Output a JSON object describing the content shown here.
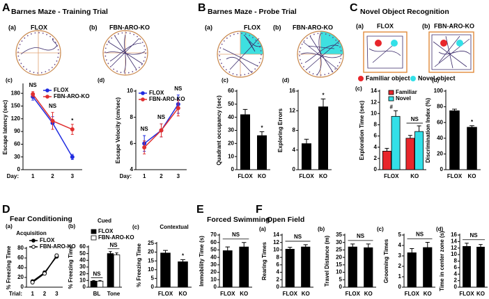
{
  "panels": [
    {
      "letter": "A",
      "title": "Barnes Maze - Training Trial"
    },
    {
      "letter": "B",
      "title": "Barnes Maze - Probe Trial"
    },
    {
      "letter": "C",
      "title": "Novel Object Recognition"
    },
    {
      "letter": "D",
      "title": "Fear Conditioning"
    },
    {
      "letter": "E",
      "title": "Forced Swimming"
    },
    {
      "letter": "F",
      "title": "Open Field"
    }
  ],
  "images": [
    {
      "label": "(a)",
      "caption": "FLOX"
    },
    {
      "label": "(b)",
      "caption": "FBN-ARO-KO"
    },
    {
      "label": "(a)",
      "caption": "FLOX"
    },
    {
      "label": "(b)",
      "caption": "FBN-ARO-KO"
    },
    {
      "label": "(a)",
      "caption": "FLOX"
    },
    {
      "label": "(b)",
      "caption": "FBN-ARO-KO"
    }
  ],
  "object_legend": [
    "Familiar object",
    "Novel object"
  ],
  "chart_data": [
    {
      "type": "line",
      "label": "(c)",
      "ylabel": "Escape latency (sec)",
      "xlabel": "Day:",
      "categories": [
        "1",
        "2",
        "3"
      ],
      "series": [
        {
          "name": "FLOX",
          "color": "#1f2be0",
          "values": [
            172,
            110,
            30
          ],
          "errors": [
            8,
            15,
            6
          ]
        },
        {
          "name": "FBN-ARO-KO",
          "color": "#e03030",
          "values": [
            178,
            115,
            95
          ],
          "errors": [
            6,
            20,
            12
          ]
        }
      ],
      "ylim": [
        0,
        200
      ],
      "yticks": [
        0,
        30,
        60,
        90,
        120,
        150,
        180
      ],
      "annotations": [
        "NS",
        "NS",
        "*"
      ]
    },
    {
      "type": "line",
      "label": "(d)",
      "ylabel": "Escape Velocity (cm/sec)",
      "xlabel": "Day:",
      "categories": [
        "1",
        "2",
        "3"
      ],
      "series": [
        {
          "name": "FLOX",
          "color": "#1f2be0",
          "values": [
            6.0,
            7.0,
            9.0
          ],
          "errors": [
            0.6,
            0.5,
            0.7
          ]
        },
        {
          "name": "FBN-ARO-KO",
          "color": "#e03030",
          "values": [
            5.7,
            7.0,
            8.7
          ],
          "errors": [
            0.5,
            0.5,
            0.6
          ]
        }
      ],
      "ylim": [
        4,
        10
      ],
      "yticks": [
        4,
        6,
        8,
        10
      ],
      "annotations": [
        "NS",
        "NS",
        "NS"
      ]
    },
    {
      "type": "bar",
      "label": "(c)",
      "ylabel": "Quadrant occupancy (sec)",
      "categories": [
        "FLOX",
        "KO"
      ],
      "values": [
        42,
        26
      ],
      "errors": [
        4,
        3
      ],
      "color": "#000000",
      "ylim": [
        0,
        60
      ],
      "yticks": [
        0,
        10,
        20,
        30,
        40,
        50,
        60
      ],
      "annotations": [
        null,
        "*"
      ]
    },
    {
      "type": "bar",
      "label": "(d)",
      "ylabel": "Exploring Errors",
      "categories": [
        "FLOX",
        "KO"
      ],
      "values": [
        5.3,
        12.8
      ],
      "errors": [
        0.9,
        1.6
      ],
      "color": "#000000",
      "ylim": [
        0,
        16
      ],
      "yticks": [
        0,
        4,
        8,
        12,
        16
      ],
      "annotations": [
        null,
        "*"
      ]
    },
    {
      "type": "bar",
      "label": "(c)",
      "ylabel": "Exploration Time (sec)",
      "categories": [
        "FLOX",
        "KO"
      ],
      "series": [
        {
          "name": "Familiar",
          "color": "#e8262b",
          "values": [
            3.3,
            5.6
          ],
          "errors": [
            0.5,
            0.5
          ]
        },
        {
          "name": "Novel",
          "color": "#33e0e8",
          "values": [
            9.5,
            6.8
          ],
          "errors": [
            1.0,
            1.0
          ]
        }
      ],
      "ylim": [
        0,
        14
      ],
      "yticks": [
        0,
        2,
        4,
        6,
        8,
        10,
        12,
        14
      ],
      "annotations": [
        "#",
        "NS"
      ]
    },
    {
      "type": "bar",
      "label": "(d)",
      "ylabel": "Discrimination Index (%)",
      "categories": [
        "FLOX",
        "KO"
      ],
      "values": [
        75,
        54
      ],
      "errors": [
        2,
        2
      ],
      "color": "#000000",
      "ylim": [
        0,
        100
      ],
      "yticks": [
        0,
        20,
        40,
        60,
        80,
        100
      ],
      "annotations": [
        null,
        "*"
      ]
    },
    {
      "type": "line",
      "label": "(a)",
      "title": "Acquisition",
      "ylabel": "% Freezing Time",
      "xlabel": "Trial:",
      "categories": [
        "1",
        "2",
        "3"
      ],
      "series": [
        {
          "name": "FLOX",
          "color": "#000000",
          "marker": "filled",
          "values": [
            12,
            30,
            63
          ],
          "errors": [
            3,
            3,
            3
          ]
        },
        {
          "name": "FBN-ARO-KO",
          "color": "#000000",
          "marker": "open",
          "values": [
            10,
            28,
            65
          ],
          "errors": [
            3,
            3,
            3
          ]
        }
      ],
      "ylim": [
        0,
        80
      ],
      "yticks": [
        0,
        20,
        40,
        60,
        80
      ]
    },
    {
      "type": "bar",
      "label": "(b)",
      "title": "Cued",
      "ylabel": "% Freezing Time",
      "categories": [
        "BL",
        "Tone"
      ],
      "series": [
        {
          "name": "FLOX",
          "color": "#000000",
          "values": [
            9,
            50
          ],
          "errors": [
            1,
            3
          ]
        },
        {
          "name": "FBN-ARO-KO",
          "color": "#ffffff",
          "values": [
            9,
            48
          ],
          "errors": [
            1,
            3
          ]
        }
      ],
      "ylim": [
        0,
        60
      ],
      "yticks": [
        0,
        10,
        20,
        30,
        40,
        50,
        60
      ],
      "annotations": [
        "NS",
        "NS"
      ]
    },
    {
      "type": "bar",
      "label": "(c)",
      "title": "Contextual",
      "ylabel": "% Freezing Time",
      "categories": [
        "FLOX",
        "KO"
      ],
      "values": [
        19.5,
        14.5
      ],
      "errors": [
        1.5,
        1.2
      ],
      "color": "#000000",
      "ylim": [
        0,
        25
      ],
      "yticks": [
        0,
        5,
        10,
        15,
        20,
        25
      ],
      "annotations": [
        null,
        "*"
      ]
    },
    {
      "type": "bar",
      "ylabel": "Immobility Time (s)",
      "categories": [
        "FLOX",
        "KO"
      ],
      "values": [
        49,
        54
      ],
      "errors": [
        5,
        6
      ],
      "color": "#000000",
      "ylim": [
        0,
        70
      ],
      "yticks": [
        0,
        10,
        20,
        30,
        40,
        50,
        60,
        70
      ],
      "annotation": "NS"
    },
    {
      "type": "bar",
      "label": "(a)",
      "ylabel": "Rearing Times",
      "categories": [
        "FLOX",
        "KO"
      ],
      "values": [
        10.2,
        10.8
      ],
      "errors": [
        0.5,
        0.6
      ],
      "color": "#000000",
      "ylim": [
        0,
        14
      ],
      "yticks": [
        0,
        2,
        4,
        6,
        8,
        10,
        12,
        14
      ],
      "annotation": "NS"
    },
    {
      "type": "bar",
      "label": "(b)",
      "ylabel": "Travel Distance (m)",
      "categories": [
        "FLOX",
        "KO"
      ],
      "values": [
        27,
        26.5
      ],
      "errors": [
        2,
        2.5
      ],
      "color": "#000000",
      "ylim": [
        0,
        35
      ],
      "yticks": [
        0,
        5,
        10,
        15,
        20,
        25,
        30,
        35
      ],
      "annotation": "NS"
    },
    {
      "type": "bar",
      "label": "(c)",
      "ylabel": "Grooming Times",
      "categories": [
        "FLOX",
        "KO"
      ],
      "values": [
        3.3,
        3.8
      ],
      "errors": [
        0.4,
        0.5
      ],
      "color": "#000000",
      "ylim": [
        0,
        5
      ],
      "yticks": [
        0,
        1,
        2,
        3,
        4,
        5
      ],
      "annotation": "NS"
    },
    {
      "type": "bar",
      "label": "(d)",
      "ylabel": "Time in center zone (s)",
      "categories": [
        "FLOX",
        "KO"
      ],
      "values": [
        12.5,
        12.3
      ],
      "errors": [
        1,
        0.8
      ],
      "color": "#000000",
      "ylim": [
        0,
        16
      ],
      "yticks": [
        0,
        2,
        4,
        6,
        8,
        10,
        12,
        14,
        16
      ],
      "annotation": "NS"
    }
  ]
}
